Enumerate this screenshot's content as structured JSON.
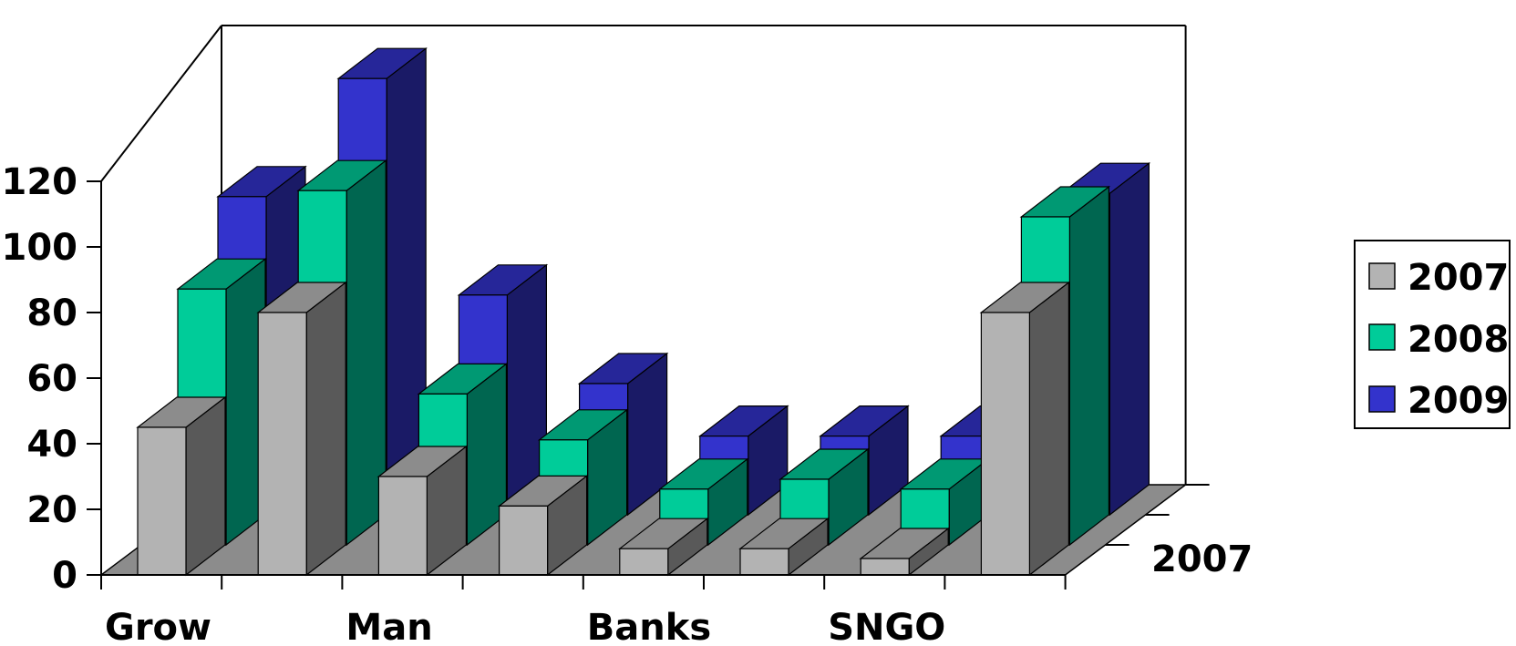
{
  "chart_data": {
    "type": "bar",
    "subtype": "3d-clustered-depth",
    "categories": [
      "Grow",
      "",
      "Man",
      "",
      "Banks",
      "",
      "SNGO",
      ""
    ],
    "series": [
      {
        "name": "2007",
        "values": [
          45,
          80,
          30,
          21,
          8,
          8,
          5,
          80
        ],
        "color": "#b3b3b3",
        "side": "#595959",
        "top": "#8c8c8c"
      },
      {
        "name": "2008",
        "values": [
          78,
          108,
          46,
          32,
          17,
          20,
          17,
          100
        ],
        "color": "#00cc99",
        "side": "#006650",
        "top": "#009973"
      },
      {
        "name": "2009",
        "values": [
          97,
          133,
          67,
          40,
          24,
          24,
          24,
          98
        ],
        "color": "#3333cc",
        "side": "#1a1a66",
        "top": "#262699"
      }
    ],
    "y_ticks": [
      "0",
      "20",
      "40",
      "60",
      "80",
      "100",
      "120"
    ],
    "ylim": [
      0,
      140
    ],
    "depth_label": "2007",
    "legend_position": "right",
    "grid": false
  }
}
